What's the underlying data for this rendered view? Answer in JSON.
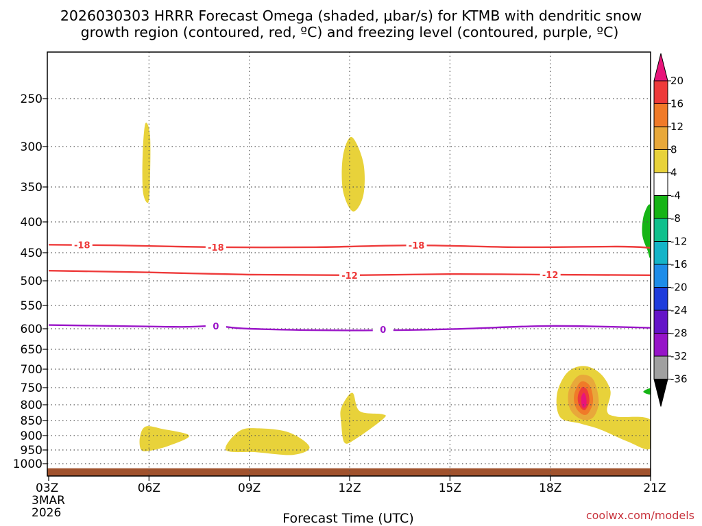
{
  "chart_data": {
    "type": "heatmap",
    "title_line1": "2026030303 HRRR Forecast Omega (shaded, μbar/s) for KTMB with dendritic snow",
    "title_line2": "growth region (contoured, red, ºC) and freezing level (contoured, purple, ºC)",
    "xlabel": "Forecast Time (UTC)",
    "x_ticks": [
      "03Z",
      "06Z",
      "09Z",
      "12Z",
      "15Z",
      "18Z",
      "21Z"
    ],
    "x_start_date_line1": "3MAR",
    "x_start_date_line2": "2026",
    "y_ticks": [
      "250",
      "300",
      "350",
      "400",
      "450",
      "500",
      "550",
      "600",
      "650",
      "700",
      "750",
      "800",
      "850",
      "900",
      "950",
      "1000"
    ],
    "y_tick_values": [
      250,
      300,
      350,
      400,
      450,
      500,
      550,
      600,
      650,
      700,
      750,
      800,
      850,
      900,
      950,
      1000
    ],
    "xlim_hours": [
      3,
      21
    ],
    "ylim_hpa": [
      200,
      1040
    ],
    "credit": "coolwx.com/models",
    "colorbar": {
      "labels": [
        "20",
        "16",
        "12",
        "8",
        "4",
        "-4",
        "-8",
        "-12",
        "-16",
        "-20",
        "-24",
        "-28",
        "-32",
        "-36"
      ],
      "colors": [
        "#e8147a",
        "#ee3a3a",
        "#f07a28",
        "#e8a83a",
        "#e8d23a",
        "#ffffff",
        "#16b416",
        "#10c08c",
        "#14b4c8",
        "#1e8ce8",
        "#1e3cdc",
        "#6414c8",
        "#9614c8",
        "#a0a0a0",
        "#000000"
      ]
    },
    "contours": [
      {
        "name": "dendritic-18",
        "label": "-18",
        "color": "#ee3a3a",
        "points": [
          [
            3,
            437
          ],
          [
            5,
            438
          ],
          [
            8,
            441
          ],
          [
            11,
            441
          ],
          [
            14,
            438
          ],
          [
            17,
            441
          ],
          [
            20,
            440
          ],
          [
            21,
            442
          ]
        ],
        "label_positions": [
          [
            4,
            437
          ],
          [
            8,
            441
          ],
          [
            14,
            438
          ]
        ]
      },
      {
        "name": "dendritic-12",
        "label": "-12",
        "color": "#ee3a3a",
        "points": [
          [
            3,
            482
          ],
          [
            6,
            485
          ],
          [
            9,
            489
          ],
          [
            12,
            490
          ],
          [
            15,
            488
          ],
          [
            18,
            489
          ],
          [
            21,
            490
          ]
        ],
        "label_positions": [
          [
            12,
            490
          ],
          [
            18,
            489
          ]
        ]
      },
      {
        "name": "freezing-level-0",
        "label": "0",
        "color": "#9a14c8",
        "points": [
          [
            3,
            592
          ],
          [
            5,
            594
          ],
          [
            7,
            596
          ],
          [
            8,
            594
          ],
          [
            9,
            600
          ],
          [
            12,
            604
          ],
          [
            15,
            601
          ],
          [
            18,
            594
          ],
          [
            21,
            598
          ]
        ],
        "label_positions": [
          [
            8,
            594
          ],
          [
            13,
            602
          ]
        ]
      }
    ],
    "shaded_regions": [
      {
        "name": "omega-4-06z-upper",
        "value_class": "4",
        "color": "#e8d23a",
        "points": [
          [
            5.81,
            310
          ],
          [
            5.89,
            276
          ],
          [
            6.03,
            288
          ],
          [
            6.03,
            340
          ],
          [
            5.98,
            372
          ],
          [
            5.82,
            357
          ]
        ]
      },
      {
        "name": "omega-4-12z-upper",
        "value_class": "4",
        "color": "#e8d23a",
        "points": [
          [
            11.8,
            312
          ],
          [
            12.06,
            290
          ],
          [
            12.41,
            320
          ],
          [
            12.41,
            362
          ],
          [
            12.1,
            385
          ],
          [
            11.8,
            355
          ]
        ]
      },
      {
        "name": "omega-4-06z-lower",
        "value_class": "4",
        "color": "#e8d23a",
        "points": [
          [
            5.73,
            905
          ],
          [
            5.9,
            870
          ],
          [
            6.4,
            878
          ],
          [
            7.2,
            900
          ],
          [
            6.6,
            935
          ],
          [
            6.0,
            953
          ],
          [
            5.76,
            948
          ]
        ]
      },
      {
        "name": "omega-4-09z-lower",
        "value_class": "4",
        "color": "#e8d23a",
        "points": [
          [
            8.3,
            950
          ],
          [
            8.7,
            885
          ],
          [
            9.3,
            876
          ],
          [
            10.2,
            890
          ],
          [
            10.8,
            940
          ],
          [
            10.3,
            968
          ],
          [
            9.2,
            958
          ]
        ]
      },
      {
        "name": "omega-4-12z-lower",
        "value_class": "4",
        "color": "#e8d23a",
        "points": [
          [
            11.75,
            810
          ],
          [
            12.08,
            765
          ],
          [
            12.3,
            820
          ],
          [
            12.98,
            830
          ],
          [
            13.0,
            845
          ],
          [
            12.2,
            910
          ],
          [
            11.85,
            925
          ],
          [
            11.75,
            860
          ]
        ]
      },
      {
        "name": "omega-4-19z",
        "value_class": "4",
        "color": "#e8d23a",
        "points": [
          [
            18.2,
            770
          ],
          [
            18.5,
            710
          ],
          [
            19.0,
            692
          ],
          [
            19.5,
            712
          ],
          [
            19.8,
            760
          ],
          [
            19.7,
            820
          ],
          [
            20.0,
            838
          ],
          [
            21.0,
            848
          ],
          [
            21.0,
            945
          ],
          [
            20.3,
            920
          ],
          [
            19.5,
            880
          ],
          [
            18.9,
            860
          ],
          [
            18.3,
            840
          ]
        ]
      },
      {
        "name": "omega-8-19z",
        "value_class": "8",
        "color": "#e8a83a",
        "points": [
          [
            18.55,
            760
          ],
          [
            18.75,
            725
          ],
          [
            19.0,
            715
          ],
          [
            19.3,
            730
          ],
          [
            19.45,
            790
          ],
          [
            19.3,
            838
          ],
          [
            19.0,
            848
          ],
          [
            18.7,
            830
          ],
          [
            18.55,
            800
          ]
        ]
      },
      {
        "name": "omega-12-19z",
        "value_class": "12",
        "color": "#f07a28",
        "points": [
          [
            18.72,
            768
          ],
          [
            18.85,
            740
          ],
          [
            19.0,
            733
          ],
          [
            19.2,
            748
          ],
          [
            19.28,
            790
          ],
          [
            19.15,
            825
          ],
          [
            19.0,
            832
          ],
          [
            18.82,
            818
          ],
          [
            18.72,
            795
          ]
        ]
      },
      {
        "name": "omega-16-19z",
        "value_class": "16",
        "color": "#ee3a3a",
        "points": [
          [
            18.83,
            772
          ],
          [
            18.92,
            752
          ],
          [
            19.0,
            748
          ],
          [
            19.12,
            760
          ],
          [
            19.17,
            790
          ],
          [
            19.08,
            812
          ],
          [
            19.0,
            817
          ],
          [
            18.9,
            808
          ],
          [
            18.83,
            792
          ]
        ]
      },
      {
        "name": "omega-20-19z",
        "value_class": "20",
        "color": "#e8147a",
        "points": [
          [
            18.93,
            778
          ],
          [
            19.0,
            765
          ],
          [
            19.07,
            778
          ],
          [
            19.08,
            800
          ],
          [
            19.0,
            810
          ],
          [
            18.94,
            800
          ]
        ]
      },
      {
        "name": "omega-neg4-21z-upper",
        "value_class": "-4",
        "color": "#16b416",
        "points": [
          [
            21.0,
            378
          ],
          [
            20.8,
            390
          ],
          [
            20.75,
            420
          ],
          [
            20.9,
            445
          ],
          [
            21.0,
            455
          ]
        ]
      },
      {
        "name": "omega-neg4-21z-lower",
        "value_class": "-4",
        "color": "#16b416",
        "points": [
          [
            21.0,
            752
          ],
          [
            20.78,
            762
          ],
          [
            21.0,
            770
          ]
        ]
      }
    ],
    "terrain": {
      "name": "ground",
      "color": "#a0522d",
      "top_hpa": 1015
    }
  }
}
